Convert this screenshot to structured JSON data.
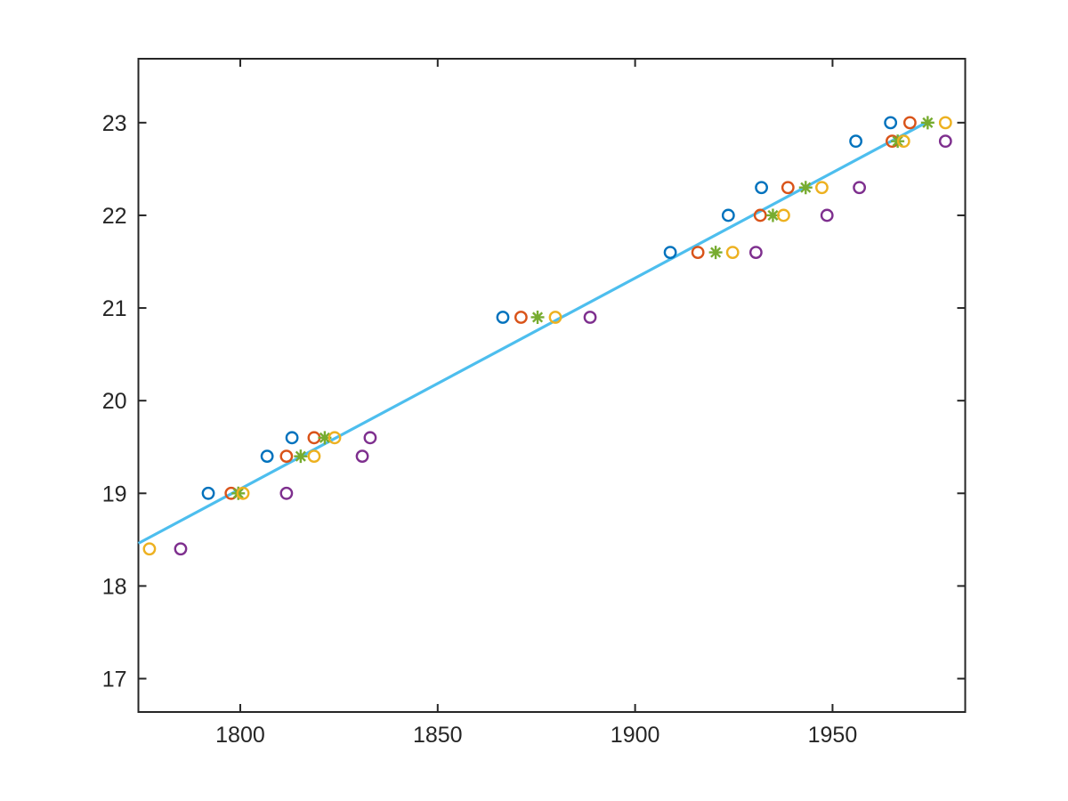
{
  "chart_data": {
    "type": "scatter",
    "title": "",
    "xlabel": "",
    "ylabel": "",
    "xlim": [
      1774.2,
      1983.6
    ],
    "ylim": [
      16.64,
      23.69
    ],
    "xticks": [
      1800,
      1850,
      1900,
      1950
    ],
    "yticks": [
      17,
      18,
      19,
      20,
      21,
      22,
      23
    ],
    "grid": false,
    "legend": "none",
    "axis_color": "#262626",
    "background_color": "#ffffff",
    "series": [
      {
        "name": "series-1-blue",
        "marker": "circle",
        "color": "#0072BD",
        "points": [
          [
            1791.9,
            19.0
          ],
          [
            1806.8,
            19.4
          ],
          [
            1813.1,
            19.6
          ],
          [
            1866.5,
            20.9
          ],
          [
            1908.9,
            21.6
          ],
          [
            1923.6,
            22.0
          ],
          [
            1932.0,
            22.3
          ],
          [
            1955.9,
            22.8
          ],
          [
            1964.7,
            23.0
          ]
        ]
      },
      {
        "name": "series-2-orange",
        "marker": "circle",
        "color": "#D95319",
        "points": [
          [
            1797.7,
            19.0
          ],
          [
            1811.7,
            19.4
          ],
          [
            1818.7,
            19.6
          ],
          [
            1871.1,
            20.9
          ],
          [
            1915.9,
            21.6
          ],
          [
            1931.7,
            22.0
          ],
          [
            1938.7,
            22.3
          ],
          [
            1965.1,
            22.8
          ],
          [
            1969.6,
            23.0
          ]
        ]
      },
      {
        "name": "series-3-green-asterisk",
        "marker": "asterisk",
        "color": "#77AC30",
        "points": [
          [
            1799.5,
            19.0
          ],
          [
            1815.3,
            19.4
          ],
          [
            1821.4,
            19.6
          ],
          [
            1875.3,
            20.9
          ],
          [
            1920.4,
            21.6
          ],
          [
            1934.9,
            22.0
          ],
          [
            1943.2,
            22.3
          ],
          [
            1966.5,
            22.8
          ],
          [
            1974.1,
            23.0
          ]
        ]
      },
      {
        "name": "series-4-yellow",
        "marker": "circle",
        "color": "#EDB120",
        "points": [
          [
            1777.0,
            18.4
          ],
          [
            1800.7,
            19.0
          ],
          [
            1818.7,
            19.4
          ],
          [
            1823.9,
            19.6
          ],
          [
            1879.8,
            20.9
          ],
          [
            1924.7,
            21.6
          ],
          [
            1937.6,
            22.0
          ],
          [
            1947.3,
            22.3
          ],
          [
            1968.0,
            22.8
          ],
          [
            1978.6,
            23.0
          ]
        ]
      },
      {
        "name": "series-5-purple",
        "marker": "circle",
        "color": "#7E2F8E",
        "points": [
          [
            1784.9,
            18.4
          ],
          [
            1811.7,
            19.0
          ],
          [
            1830.9,
            19.4
          ],
          [
            1832.9,
            19.6
          ],
          [
            1888.6,
            20.9
          ],
          [
            1930.6,
            21.6
          ],
          [
            1948.6,
            22.0
          ],
          [
            1956.8,
            22.3
          ],
          [
            1978.6,
            22.8
          ]
        ]
      }
    ],
    "fit_line": {
      "name": "linear-fit-line",
      "color": "#4DBEEE",
      "from": [
        1774.2,
        18.46
      ],
      "to": [
        1974.1,
        23.01
      ]
    }
  }
}
